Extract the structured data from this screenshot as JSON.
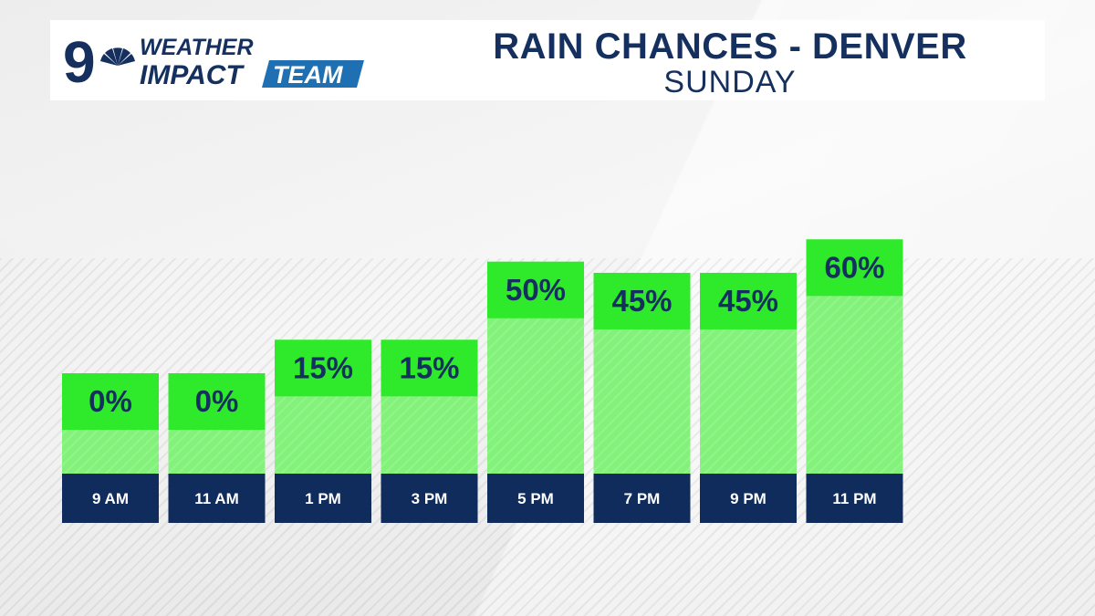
{
  "header": {
    "logo_number": "9",
    "logo_line1": "WEATHER",
    "logo_line2": "IMPACT",
    "logo_badge": "TEAM",
    "title": "RAIN CHANCES - DENVER",
    "subtitle": "SUNDAY"
  },
  "colors": {
    "navy": "#0f2c5c",
    "label_green": "#2fea2b",
    "bar_green": "#83f27b",
    "text_navy": "#15305f"
  },
  "chart_data": {
    "type": "bar",
    "title": "RAIN CHANCES - DENVER",
    "subtitle": "SUNDAY",
    "categories": [
      "9 AM",
      "11 AM",
      "1 PM",
      "3 PM",
      "5 PM",
      "7 PM",
      "9 PM",
      "11 PM"
    ],
    "values": [
      0,
      0,
      15,
      15,
      50,
      45,
      45,
      60
    ],
    "value_suffix": "%",
    "ylim": [
      0,
      100
    ],
    "xlabel": "",
    "ylabel": ""
  }
}
